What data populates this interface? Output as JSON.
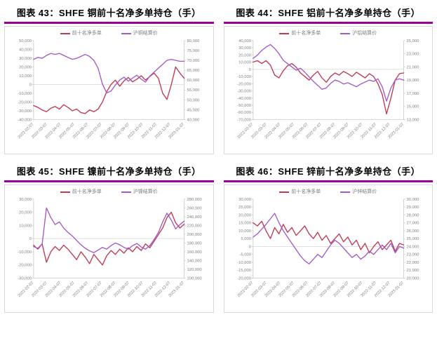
{
  "page": {
    "background": "#ffffff"
  },
  "colors": {
    "title_rule": "#990099",
    "net_long_line": "#c03a52",
    "price_line": "#a35bca",
    "axis_text": "#7f7f7f",
    "panel_border": "#d9d9d9",
    "axis_line": "#bfbfbf",
    "zero_line": "#d9d9d9"
  },
  "chart_data": [
    {
      "type": "line",
      "title": "图表 43：SHFE 铜前十名净多单持仓（手）",
      "legend_position": "top",
      "x_labels": [
        "2022-02-07",
        "2022-03-07",
        "2022-04-07",
        "2022-05-07",
        "2022-06-07",
        "2022-07-07",
        "2022-08-07",
        "2022-09-07",
        "2022-10-07",
        "2022-11-07",
        "2022-12-07",
        "2023-01-07"
      ],
      "left_axis": {
        "min": -40000,
        "max": 50000,
        "ticks": [
          "50,000",
          "40,000",
          "30,000",
          "20,000",
          "10,000",
          "0",
          "-10,000",
          "-20,000",
          "-30,000",
          "-40,000"
        ]
      },
      "right_axis": {
        "min": 40000,
        "max": 80000,
        "ticks": [
          "80,000",
          "75,000",
          "70,000",
          "65,000",
          "60,000",
          "55,000",
          "50,000",
          "45,000",
          "40,000"
        ]
      },
      "series": [
        {
          "name": "前十名净多单",
          "axis": "left",
          "color": "#c03a52",
          "values": [
            -24000,
            -26000,
            -29000,
            -31000,
            -27000,
            -25000,
            -28000,
            -23000,
            -26000,
            -30000,
            -28000,
            -32000,
            -33000,
            -29000,
            -31000,
            -28000,
            -20000,
            -8000,
            0,
            5000,
            -2000,
            4000,
            8000,
            3000,
            6000,
            10000,
            5000,
            9000,
            13000,
            7000,
            -10000,
            -17000,
            0,
            20000,
            13000,
            7000
          ]
        },
        {
          "name": "沪铜结算价",
          "axis": "right",
          "color": "#a35bca",
          "values": [
            70500,
            71500,
            71000,
            72500,
            73500,
            73000,
            73500,
            72500,
            71500,
            70500,
            71000,
            72000,
            73000,
            72000,
            70000,
            66000,
            58000,
            53500,
            54500,
            57500,
            60000,
            61500,
            59500,
            61000,
            62500,
            60500,
            59000,
            62000,
            64000,
            66000,
            68000,
            70000,
            70500,
            70000,
            69500,
            69500
          ]
        }
      ],
      "grid": "zero-line-only"
    },
    {
      "type": "line",
      "title": "图表 44：SHFE 铝前十名净多单持仓（手）",
      "legend_position": "top",
      "x_labels": [
        "2022-02-07",
        "2022-03-07",
        "2022-04-07",
        "2022-05-07",
        "2022-06-07",
        "2022-07-07",
        "2022-08-07",
        "2022-09-07",
        "2022-10-07",
        "2022-11-07",
        "2022-12-07",
        "2023-01-07"
      ],
      "left_axis": {
        "min": -70000,
        "max": 40000,
        "ticks": [
          "40,000",
          "30,000",
          "20,000",
          "10,000",
          "0",
          "-10,000",
          "-20,000",
          "-30,000",
          "-40,000",
          "-50,000",
          "-60,000",
          "-70,000"
        ]
      },
      "right_axis": {
        "min": 13000,
        "max": 25000,
        "ticks": [
          "25,000",
          "23,000",
          "21,000",
          "19,000",
          "17,000",
          "15,000",
          "13,000"
        ]
      },
      "series": [
        {
          "name": "前十名净多单",
          "axis": "left",
          "color": "#c03a52",
          "values": [
            10000,
            12000,
            8000,
            12000,
            6000,
            -8000,
            -12000,
            -2000,
            5000,
            8000,
            3000,
            -5000,
            -10000,
            -15000,
            -8000,
            -3000,
            -12000,
            -18000,
            -10000,
            -5000,
            -8000,
            -3000,
            -6000,
            -10000,
            -4000,
            -8000,
            -12000,
            -6000,
            -10000,
            -20000,
            -35000,
            -62000,
            -40000,
            -15000,
            -6000,
            -5000
          ]
        },
        {
          "name": "沪铝结算价",
          "axis": "right",
          "color": "#a35bca",
          "values": [
            22300,
            22800,
            23500,
            24000,
            24400,
            23800,
            23000,
            22000,
            21500,
            21000,
            20500,
            20800,
            20200,
            19500,
            18800,
            18200,
            17600,
            17800,
            18500,
            19000,
            18800,
            18400,
            18600,
            18300,
            18000,
            18400,
            18700,
            19000,
            18800,
            19200,
            18000,
            15800,
            17800,
            19000,
            19200,
            19000
          ]
        }
      ],
      "grid": "zero-line-only"
    },
    {
      "type": "line",
      "title": "图表 45：SHFE 镍前十名净多单持仓（手）",
      "legend_position": "top",
      "x_labels": [
        "2022-02-07",
        "2022-03-07",
        "2022-04-07",
        "2022-05-07",
        "2022-06-07",
        "2022-07-07",
        "2022-08-07",
        "2022-09-07",
        "2022-10-07",
        "2022-11-07",
        "2022-12-07",
        "2023-01-07"
      ],
      "left_axis": {
        "min": -30000,
        "max": 30000,
        "ticks": [
          "30,000",
          "20,000",
          "10,000",
          "0",
          "-10,000",
          "-20,000",
          "-30,000"
        ]
      },
      "right_axis": {
        "min": 100000,
        "max": 280000,
        "ticks": [
          "280,000",
          "260,000",
          "240,000",
          "220,000",
          "200,000",
          "180,000",
          "160,000",
          "140,000",
          "120,000",
          "100,000"
        ]
      },
      "series": [
        {
          "name": "前十名净多单",
          "axis": "left",
          "color": "#c03a52",
          "values": [
            -5000,
            -8000,
            -4000,
            -18000,
            -10000,
            -6000,
            -9000,
            -5000,
            -8000,
            -12000,
            -16000,
            -10000,
            -14000,
            -19000,
            -12000,
            -16000,
            -20000,
            -13000,
            -9000,
            -12000,
            -8000,
            -11000,
            -7000,
            -10000,
            -6000,
            -9000,
            -4000,
            -7000,
            -2000,
            3000,
            8000,
            16000,
            20000,
            12000,
            8000,
            11000
          ]
        },
        {
          "name": "沪镍结算价",
          "axis": "right",
          "color": "#a35bca",
          "values": [
            172000,
            168000,
            178000,
            260000,
            238000,
            222000,
            228000,
            214000,
            204000,
            196000,
            186000,
            176000,
            168000,
            162000,
            158000,
            164000,
            170000,
            166000,
            174000,
            180000,
            176000,
            170000,
            166000,
            174000,
            179000,
            171000,
            166000,
            174000,
            188000,
            204000,
            228000,
            248000,
            232000,
            212000,
            222000,
            230000
          ]
        }
      ],
      "grid": "zero-line-only"
    },
    {
      "type": "line",
      "title": "图表 46：SHFE 锌前十名净多单持仓（手）",
      "legend_position": "top",
      "x_labels": [
        "2022-02-07",
        "2022-03-07",
        "2022-04-07",
        "2022-05-07",
        "2022-06-07",
        "2022-07-07",
        "2022-08-07",
        "2022-09-07",
        "2022-10-07",
        "2022-11-07",
        "2022-12-07",
        "2023-01-07"
      ],
      "left_axis": {
        "min": -20000,
        "max": 30000,
        "ticks": [
          "30,000",
          "25,000",
          "20,000",
          "15,000",
          "10,000",
          "5,000",
          "0",
          "-5,000",
          "-10,000",
          "-15,000",
          "-20,000"
        ]
      },
      "right_axis": {
        "min": 20000,
        "max": 30000,
        "ticks": [
          "30,000",
          "29,000",
          "28,000",
          "27,000",
          "26,000",
          "25,000",
          "24,000",
          "23,000",
          "22,000",
          "21,000",
          "20,000"
        ]
      },
      "series": [
        {
          "name": "前十名净多单",
          "axis": "left",
          "color": "#c03a52",
          "values": [
            15000,
            13000,
            16000,
            10000,
            5000,
            12000,
            8000,
            14000,
            9000,
            12000,
            7000,
            10000,
            13000,
            8000,
            5000,
            9000,
            4000,
            7000,
            2000,
            5000,
            8000,
            3000,
            6000,
            1000,
            4000,
            -2000,
            2000,
            -4000,
            0,
            3000,
            -2000,
            1000,
            4000,
            -3000,
            2000,
            1000
          ]
        },
        {
          "name": "沪锌结算价",
          "axis": "right",
          "color": "#a35bca",
          "values": [
            25200,
            25600,
            26200,
            26800,
            27500,
            28200,
            27000,
            26000,
            25200,
            24400,
            23600,
            22800,
            22200,
            21800,
            22400,
            23000,
            22600,
            23400,
            24200,
            24800,
            24400,
            23800,
            23200,
            22600,
            23000,
            22400,
            22800,
            23400,
            23000,
            23600,
            24200,
            23600,
            24400,
            23200,
            24000,
            23800
          ]
        }
      ],
      "grid": "zero-line-only"
    }
  ]
}
